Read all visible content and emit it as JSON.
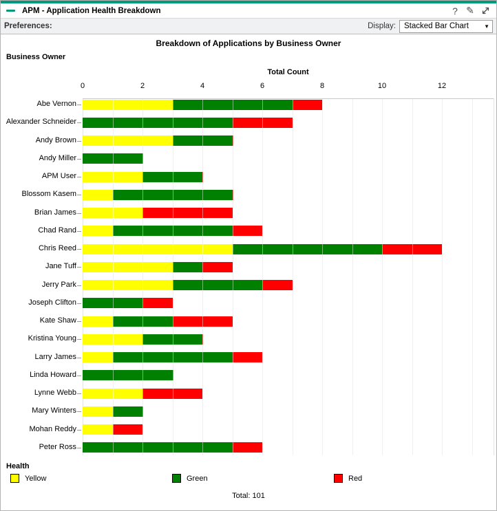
{
  "window": {
    "title": "APM - Application Health Breakdown",
    "icons": {
      "minimize_glyph": "-",
      "help_glyph": "?",
      "edit_glyph": "✎"
    }
  },
  "toolbar": {
    "preferences_label": "Preferences:",
    "display_label": "Display:",
    "display_value": "Stacked Bar Chart",
    "dropdown_arrow_glyph": "▼"
  },
  "chart": {
    "title": "Breakdown of Applications by Business Owner",
    "y_axis_title": "Business Owner",
    "x_axis_title": "Total Count"
  },
  "chart_data": {
    "type": "bar",
    "orientation": "horizontal",
    "stacked": true,
    "title": "Breakdown of Applications by Business Owner",
    "xlabel": "Total Count",
    "ylabel": "Business Owner",
    "xlim": [
      0,
      13.5
    ],
    "x_ticks": [
      0,
      2,
      4,
      6,
      8,
      10,
      12
    ],
    "gridline_step": 1,
    "grid": true,
    "legend_position": "bottom",
    "categories": [
      "Abe Vernon",
      "Alexander Schneider",
      "Andy Brown",
      "Andy Miller",
      "APM User",
      "Blossom Kasem",
      "Brian James",
      "Chad Rand",
      "Chris Reed",
      "Jane Tuff",
      "Jerry Park",
      "Joseph Clifton",
      "Kate Shaw",
      "Kristina Young",
      "Larry James",
      "Linda Howard",
      "Lynne Webb",
      "Mary Winters",
      "Mohan Reddy",
      "Peter Ross"
    ],
    "series": [
      {
        "name": "Yellow",
        "color": "#ffff00",
        "values": [
          3,
          0,
          3,
          0,
          2,
          1,
          2,
          1,
          5,
          3,
          3,
          0,
          1,
          2,
          1,
          0,
          2,
          1,
          1,
          0
        ]
      },
      {
        "name": "Green",
        "color": "#008000",
        "values": [
          4,
          5,
          2,
          2,
          2,
          4,
          0,
          4,
          5,
          1,
          3,
          2,
          2,
          2,
          4,
          3,
          0,
          1,
          0,
          5
        ]
      },
      {
        "name": "Red",
        "color": "#ff0000",
        "values": [
          1,
          2,
          0,
          0,
          0,
          0,
          3,
          1,
          2,
          1,
          1,
          1,
          2,
          0,
          1,
          0,
          2,
          0,
          1,
          1
        ]
      }
    ],
    "totals": [
      8,
      7,
      5,
      2,
      4,
      5,
      5,
      6,
      12,
      5,
      7,
      3,
      5,
      4,
      6,
      3,
      4,
      2,
      2,
      6
    ]
  },
  "legend": {
    "title": "Health",
    "items": [
      {
        "label": "Yellow",
        "color": "#ffff00"
      },
      {
        "label": "Green",
        "color": "#008000"
      },
      {
        "label": "Red",
        "color": "#ff0000"
      }
    ]
  },
  "footer": {
    "total_label": "Total: 101"
  },
  "colors": {
    "accent_teal": "#00997b",
    "yellow": "#ffff00",
    "green": "#008000",
    "red": "#ff0000"
  }
}
